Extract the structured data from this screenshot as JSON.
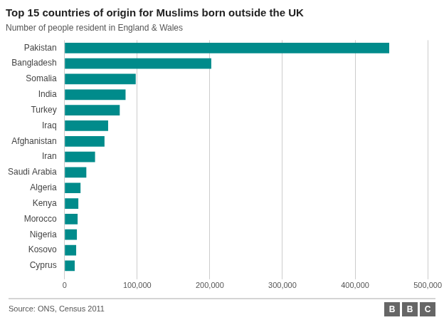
{
  "chart_data": {
    "type": "bar",
    "orientation": "horizontal",
    "title": "Top 15 countries of origin for Muslims born outside the UK",
    "subtitle": "Number of people resident in England & Wales",
    "annotations": [
      "Source: ONS, Census 2011",
      "BBC"
    ],
    "categories": [
      "Pakistan",
      "Bangladesh",
      "Somalia",
      "India",
      "Turkey",
      "Iraq",
      "Afghanistan",
      "Iran",
      "Saudi Arabia",
      "Algeria",
      "Kenya",
      "Morocco",
      "Nigeria",
      "Kosovo",
      "Cyprus"
    ],
    "values": [
      447000,
      202000,
      98000,
      84000,
      76000,
      60000,
      55000,
      42000,
      30000,
      22000,
      19000,
      18000,
      17000,
      16000,
      14000
    ],
    "color": "#008B8B",
    "xlim": [
      0,
      500000
    ],
    "xticks": [
      0,
      {
        "value": 100000,
        "label": "100,000"
      },
      {
        "value": 200000,
        "label": "200,000"
      },
      {
        "value": 300000,
        "label": "300,000"
      },
      {
        "value": 400000,
        "label": "400,000"
      },
      {
        "value": 500000,
        "label": "500,000"
      }
    ],
    "grid": true
  }
}
